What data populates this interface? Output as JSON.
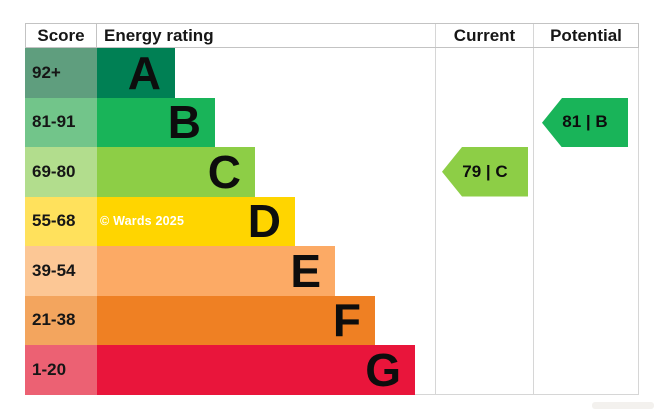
{
  "header": {
    "score": "Score",
    "energy_rating": "Energy rating",
    "current": "Current",
    "potential": "Potential"
  },
  "watermark": "© Wards 2025",
  "chart_data": {
    "type": "bar",
    "description": "EPC energy efficiency rating chart",
    "bands": [
      {
        "range": "92+",
        "letter": "A",
        "color": "#008054",
        "score_color": "#5f9e7e"
      },
      {
        "range": "81-91",
        "letter": "B",
        "color": "#19b459",
        "score_color": "#72c58a"
      },
      {
        "range": "69-80",
        "letter": "C",
        "color": "#8dce46",
        "score_color": "#b2dd8d"
      },
      {
        "range": "55-68",
        "letter": "D",
        "color": "#ffd500",
        "score_color": "#ffe15c"
      },
      {
        "range": "39-54",
        "letter": "E",
        "color": "#fcaa65",
        "score_color": "#fcc795"
      },
      {
        "range": "21-38",
        "letter": "F",
        "color": "#ef8023",
        "score_color": "#f3a55e"
      },
      {
        "range": "1-20",
        "letter": "G",
        "color": "#e9153b",
        "score_color": "#ec6173"
      }
    ],
    "current": {
      "score": 79,
      "band": "C",
      "label": "79 | C",
      "color": "#8dce46",
      "band_index": 2
    },
    "potential": {
      "score": 81,
      "band": "B",
      "label": "81 | B",
      "color": "#19b459",
      "band_index": 1
    }
  }
}
